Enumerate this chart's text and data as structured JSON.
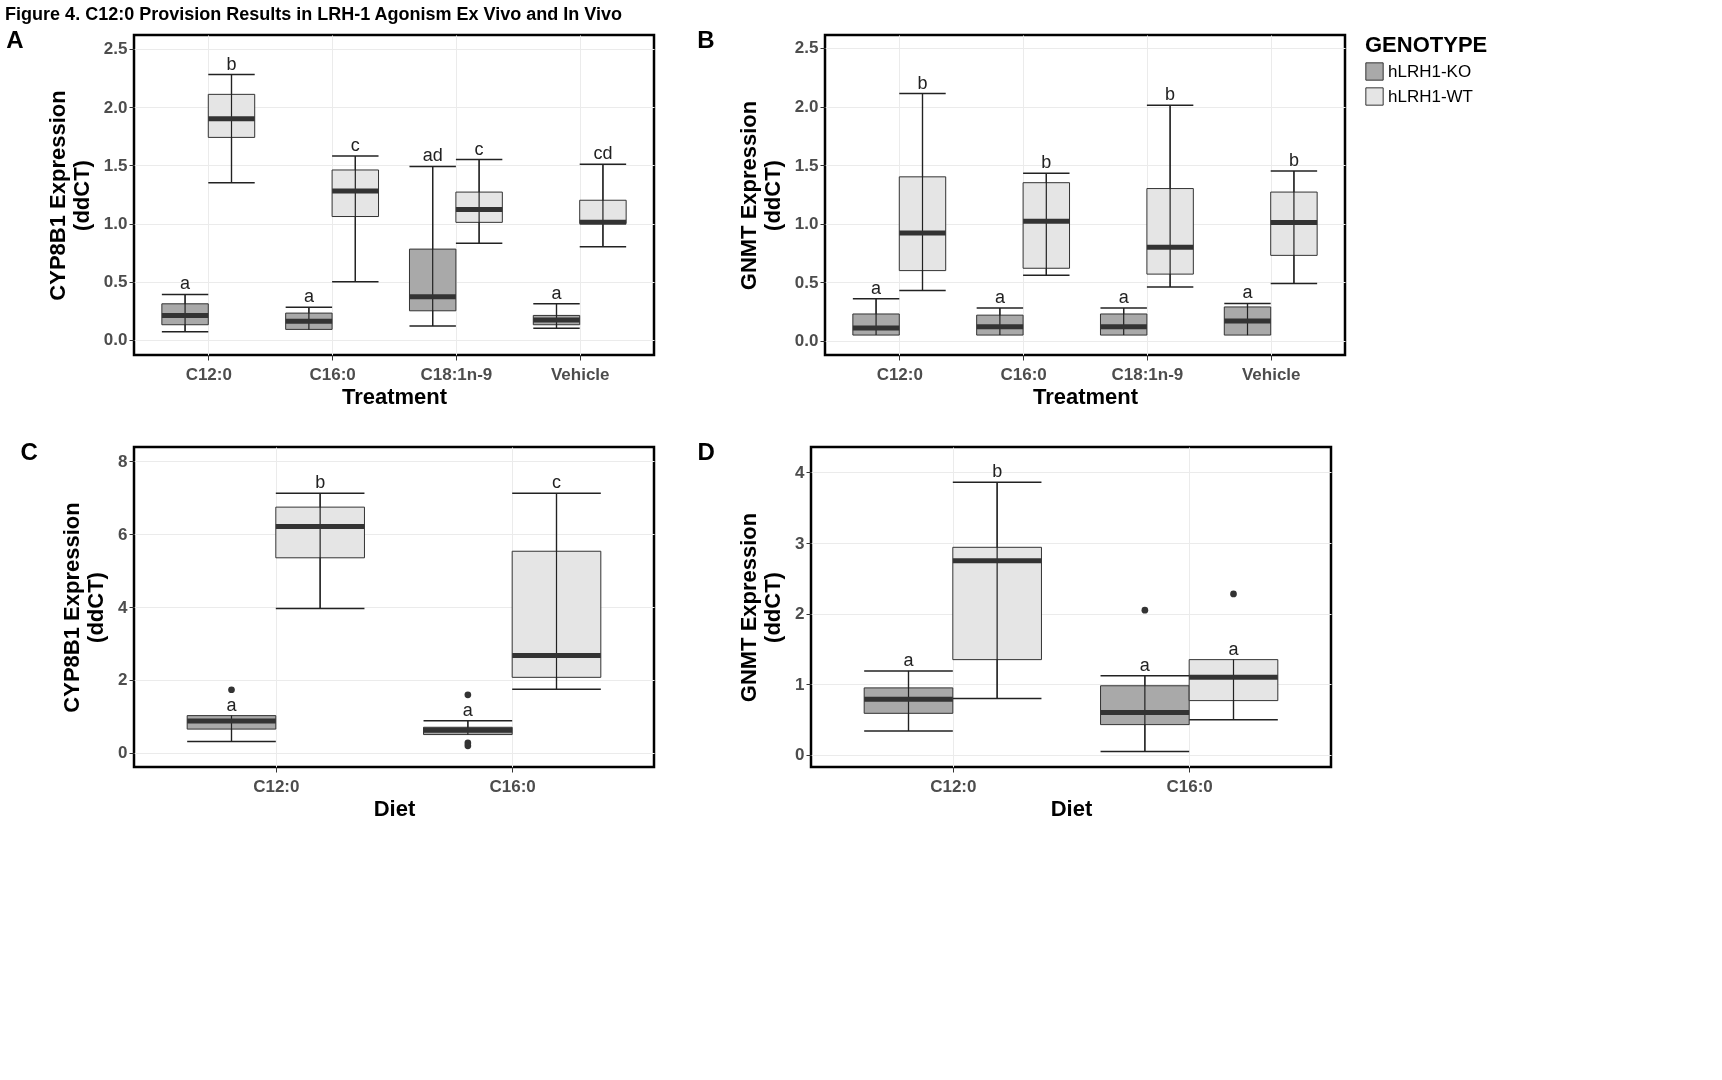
{
  "chart_data": [
    {
      "type": "box",
      "title": "A",
      "annotations": [
        "Figure 4. C12:0 Provision Results in LRH-1 Agonism Ex Vivo and In Vivo"
      ],
      "xlabel": "Treatment",
      "ylabel": "CYP8B1 Expression\n(ddCT)",
      "categories": [
        "C12:0",
        "C16:0",
        "C18:1n-9",
        "Vehicle"
      ],
      "ylim": [
        -0.13,
        2.62
      ],
      "yticks": [
        {
          "value": 0,
          "label": "0.0"
        },
        0.5,
        {
          "value": 1,
          "label": "1.0"
        },
        1.5,
        {
          "value": 2,
          "label": "2.0"
        },
        2.5
      ],
      "grid": true,
      "series": [
        {
          "color": "#a9a9a9",
          "value_labels": [
            "a",
            "a",
            "ad",
            "a"
          ],
          "boxes": [
            {
              "low": 0.07,
              "q1": 0.13,
              "median": 0.21,
              "q3": 0.31,
              "high": 0.39
            },
            {
              "low": 0.09,
              "q1": 0.09,
              "median": 0.16,
              "q3": 0.23,
              "high": 0.28
            },
            {
              "low": 0.12,
              "q1": 0.25,
              "median": 0.37,
              "q3": 0.78,
              "high": 1.49
            },
            {
              "low": 0.1,
              "q1": 0.13,
              "median": 0.17,
              "q3": 0.21,
              "high": 0.31
            }
          ]
        },
        {
          "color": "#e5e5e5",
          "value_labels": [
            "b",
            "c",
            "c",
            "cd"
          ],
          "boxes": [
            {
              "low": 1.35,
              "q1": 1.74,
              "median": 1.9,
              "q3": 2.11,
              "high": 2.28
            },
            {
              "low": 0.5,
              "q1": 1.06,
              "median": 1.28,
              "q3": 1.46,
              "high": 1.58
            },
            {
              "low": 0.83,
              "q1": 1.01,
              "median": 1.12,
              "q3": 1.27,
              "high": 1.55
            },
            {
              "low": 0.8,
              "q1": 1.0,
              "median": 1.01,
              "q3": 1.2,
              "high": 1.51
            }
          ]
        }
      ]
    },
    {
      "type": "box",
      "title": "B",
      "xlabel": "Treatment",
      "ylabel": "GNMT Expression\n(ddCT)",
      "categories": [
        "C12:0",
        "C16:0",
        "C18:1n-9",
        "Vehicle"
      ],
      "ylim": [
        -0.12,
        2.61
      ],
      "yticks": [
        {
          "value": 0,
          "label": "0.0"
        },
        0.5,
        {
          "value": 1,
          "label": "1.0"
        },
        1.5,
        {
          "value": 2,
          "label": "2.0"
        },
        2.5
      ],
      "grid": true,
      "legend": "right",
      "legend_title": "GENOTYPE",
      "series": [
        {
          "name": "hLRH1-KO",
          "color": "#a9a9a9",
          "value_labels": [
            "a",
            "a",
            "a",
            "a"
          ],
          "boxes": [
            {
              "low": 0.05,
              "q1": 0.05,
              "median": 0.11,
              "q3": 0.23,
              "high": 0.36
            },
            {
              "low": 0.05,
              "q1": 0.05,
              "median": 0.12,
              "q3": 0.22,
              "high": 0.28
            },
            {
              "low": 0.05,
              "q1": 0.05,
              "median": 0.12,
              "q3": 0.23,
              "high": 0.28
            },
            {
              "low": 0.05,
              "q1": 0.05,
              "median": 0.17,
              "q3": 0.29,
              "high": 0.32
            }
          ]
        },
        {
          "name": "hLRH1-WT",
          "color": "#e5e5e5",
          "value_labels": [
            "b",
            "b",
            "b",
            "b"
          ],
          "boxes": [
            {
              "low": 0.43,
              "q1": 0.6,
              "median": 0.92,
              "q3": 1.4,
              "high": 2.11
            },
            {
              "low": 0.56,
              "q1": 0.62,
              "median": 1.02,
              "q3": 1.35,
              "high": 1.43
            },
            {
              "low": 0.46,
              "q1": 0.57,
              "median": 0.8,
              "q3": 1.3,
              "high": 2.01
            },
            {
              "low": 0.49,
              "q1": 0.73,
              "median": 1.01,
              "q3": 1.27,
              "high": 1.45
            }
          ]
        }
      ]
    },
    {
      "type": "box",
      "title": "C",
      "xlabel": "Diet",
      "ylabel": "CYP8B1 Expression\n(ddCT)",
      "categories": [
        "C12:0",
        "C16:0"
      ],
      "ylim": [
        -0.39,
        8.39
      ],
      "yticks": [
        0,
        2,
        4,
        6,
        8
      ],
      "grid": true,
      "series": [
        {
          "color": "#a9a9a9",
          "value_labels": [
            "a",
            "a"
          ],
          "boxes": [
            {
              "low": 0.31,
              "q1": 0.65,
              "median": 0.87,
              "q3": 1.02,
              "high": 1.02,
              "outliers": [
                1.73
              ]
            },
            {
              "low": 0.5,
              "q1": 0.5,
              "median": 0.62,
              "q3": 0.7,
              "high": 0.88,
              "outliers": [
                1.59,
                0.27,
                0.19
              ]
            }
          ]
        },
        {
          "color": "#e5e5e5",
          "value_labels": [
            "b",
            "c"
          ],
          "boxes": [
            {
              "low": 3.96,
              "q1": 5.35,
              "median": 6.21,
              "q3": 6.74,
              "high": 7.12
            },
            {
              "low": 1.74,
              "q1": 2.07,
              "median": 2.67,
              "q3": 5.53,
              "high": 7.12
            }
          ]
        }
      ]
    },
    {
      "type": "box",
      "title": "D",
      "xlabel": "Diet",
      "ylabel": "GNMT Expression\n(ddCT)",
      "categories": [
        "C12:0",
        "C16:0"
      ],
      "ylim": [
        -0.17,
        4.36
      ],
      "yticks": [
        0,
        1,
        2,
        3,
        4
      ],
      "grid": true,
      "series": [
        {
          "color": "#a9a9a9",
          "value_labels": [
            "a",
            "a"
          ],
          "boxes": [
            {
              "low": 0.34,
              "q1": 0.59,
              "median": 0.79,
              "q3": 0.95,
              "high": 1.19
            },
            {
              "low": 0.05,
              "q1": 0.43,
              "median": 0.6,
              "q3": 0.98,
              "high": 1.12,
              "outliers": [
                2.05
              ]
            }
          ]
        },
        {
          "color": "#e5e5e5",
          "value_labels": [
            "b",
            "a"
          ],
          "boxes": [
            {
              "low": 0.8,
              "q1": 1.35,
              "median": 2.75,
              "q3": 2.94,
              "high": 3.86
            },
            {
              "low": 0.5,
              "q1": 0.77,
              "median": 1.1,
              "q3": 1.35,
              "high": 1.35,
              "outliers": [
                2.28
              ]
            }
          ]
        }
      ]
    }
  ]
}
